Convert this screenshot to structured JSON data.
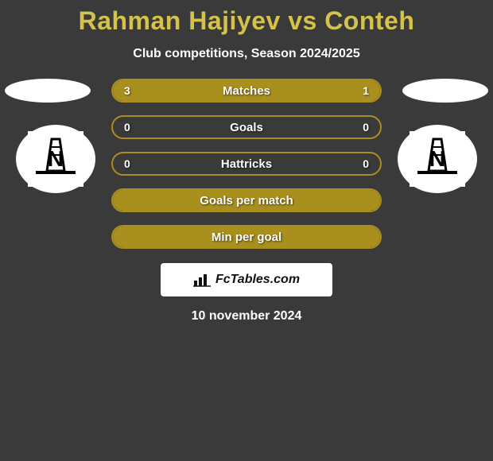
{
  "title": "Rahman Hajiyev vs Conteh",
  "subtitle": "Club competitions, Season 2024/2025",
  "colors": {
    "accent": "#a98f1e",
    "title": "#d4c24a",
    "text_light": "#ffffff",
    "badge_bg": "#ffffff",
    "badge_text": "#111111"
  },
  "rows": [
    {
      "label": "Matches",
      "left": "3",
      "right": "1",
      "left_pct": 75,
      "right_pct": 25
    },
    {
      "label": "Goals",
      "left": "0",
      "right": "0",
      "left_pct": 0,
      "right_pct": 0
    },
    {
      "label": "Hattricks",
      "left": "0",
      "right": "0",
      "left_pct": 0,
      "right_pct": 0
    },
    {
      "label": "Goals per match",
      "left": "",
      "right": "",
      "left_pct": 100,
      "right_pct": 0,
      "full": true
    },
    {
      "label": "Min per goal",
      "left": "",
      "right": "",
      "left_pct": 100,
      "right_pct": 0,
      "full": true
    }
  ],
  "badge_text": "FcTables.com",
  "date": "10 november 2024"
}
